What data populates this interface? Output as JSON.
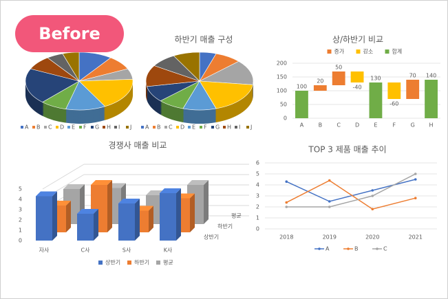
{
  "badge": "Before",
  "chart_data": [
    {
      "type": "pie3d",
      "categories": [
        "A",
        "B",
        "C",
        "D",
        "E",
        "F",
        "G",
        "H",
        "I",
        "J"
      ],
      "values": [
        10,
        8,
        6,
        18,
        12,
        8,
        20,
        8,
        5,
        5
      ],
      "colors": [
        "#4472c4",
        "#ed7d31",
        "#a5a5a5",
        "#ffc000",
        "#5b9bd5",
        "#70ad47",
        "#264478",
        "#9e480e",
        "#636363",
        "#997300"
      ]
    },
    {
      "type": "pie3d",
      "title": "하반기 매출 구성",
      "categories": [
        "A",
        "B",
        "C",
        "D",
        "E",
        "F",
        "G",
        "H",
        "I",
        "J"
      ],
      "values": [
        5,
        8,
        14,
        18,
        10,
        8,
        9,
        12,
        8,
        8
      ],
      "colors": [
        "#4472c4",
        "#ed7d31",
        "#a5a5a5",
        "#ffc000",
        "#5b9bd5",
        "#70ad47",
        "#264478",
        "#9e480e",
        "#636363",
        "#997300"
      ]
    },
    {
      "type": "waterfall",
      "title": "상/하반기 비교",
      "categories": [
        "A",
        "B",
        "C",
        "D",
        "E",
        "F",
        "G",
        "H"
      ],
      "series": [
        {
          "name": "증가",
          "color": "#ed7d31",
          "values": [
            null,
            20,
            50,
            null,
            null,
            null,
            70,
            null
          ]
        },
        {
          "name": "감소",
          "color": "#ffc000",
          "values": [
            null,
            null,
            null,
            -40,
            null,
            -60,
            null,
            null
          ]
        },
        {
          "name": "합계",
          "color": "#70ad47",
          "values": [
            100,
            null,
            null,
            null,
            130,
            null,
            null,
            140
          ]
        }
      ],
      "ylim": [
        0,
        200
      ],
      "yticks": [
        0,
        50,
        100,
        150,
        200
      ],
      "grid": true
    },
    {
      "type": "bar3d",
      "title": "경쟁사 매출 비교",
      "categories": [
        "자사",
        "C사",
        "S사",
        "K사"
      ],
      "series": [
        {
          "name": "상반기",
          "color": "#4472c4",
          "values": [
            4.3,
            2.6,
            3.6,
            4.6
          ]
        },
        {
          "name": "하반기",
          "color": "#ed7d31",
          "values": [
            2.6,
            4.6,
            2.1,
            3.3
          ]
        },
        {
          "name": "평균",
          "color": "#a5a5a5",
          "values": [
            3.4,
            3.5,
            2.8,
            3.8
          ]
        }
      ],
      "ylim": [
        0,
        5
      ],
      "yticks": [
        0,
        1,
        2,
        3,
        4,
        5
      ],
      "grid": true
    },
    {
      "type": "line",
      "title": "TOP 3 제품 매출 추이",
      "categories": [
        "2018",
        "2019",
        "2020",
        "2021"
      ],
      "series": [
        {
          "name": "A",
          "color": "#4472c4",
          "values": [
            4.3,
            2.5,
            3.5,
            4.5
          ]
        },
        {
          "name": "B",
          "color": "#ed7d31",
          "values": [
            2.4,
            4.4,
            1.8,
            2.8
          ]
        },
        {
          "name": "C",
          "color": "#a5a5a5",
          "values": [
            2,
            2,
            3,
            5
          ]
        }
      ],
      "ylim": [
        0,
        6
      ],
      "yticks": [
        0,
        1,
        2,
        3,
        4,
        5,
        6
      ],
      "grid": true
    }
  ]
}
